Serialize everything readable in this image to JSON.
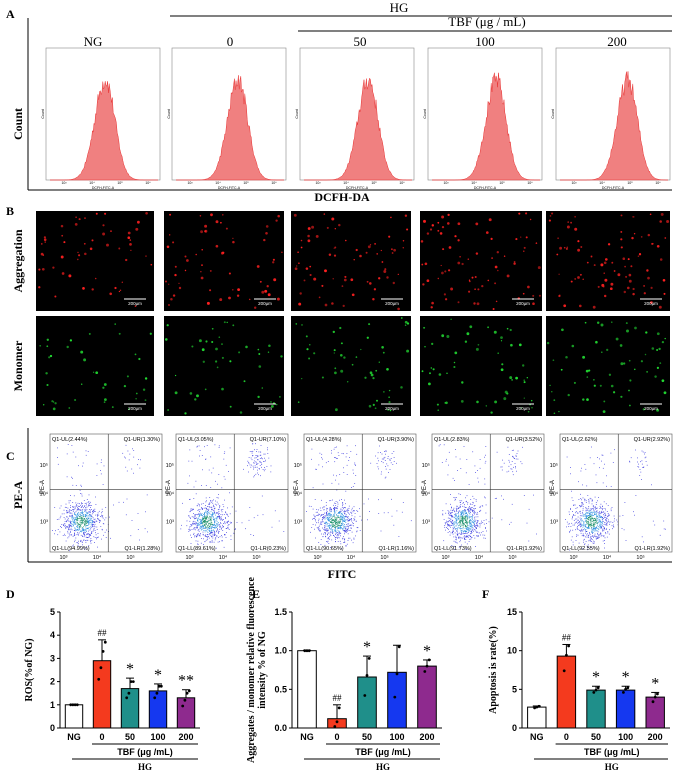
{
  "panel_labels": {
    "a": "A",
    "b": "B",
    "c": "C",
    "d": "D",
    "e": "E",
    "f": "F"
  },
  "header": {
    "hg": "HG",
    "tbf": "TBF (μg / mL)",
    "groups": [
      "NG",
      "0",
      "50",
      "100",
      "200"
    ]
  },
  "panel_a": {
    "ylabel": "Count",
    "xlabel": "DCFH-DA",
    "hist_axis_y": "Count",
    "hist_axis_x": "DCFH-FITC-A",
    "hist_ticks": [
      "10³",
      "10⁴",
      "10⁵",
      "10⁶"
    ],
    "peak_positions": [
      0.52,
      0.58,
      0.6,
      0.6,
      0.63
    ],
    "colors": {
      "fill": "#f08080",
      "stroke": "#e83030"
    }
  },
  "panel_b": {
    "row_labels": [
      "Aggregation",
      "Monomer"
    ],
    "scale_bar": "200μm",
    "dot_colors": {
      "aggregation": "#ff2020",
      "monomer": "#22dd33"
    }
  },
  "panel_c": {
    "ylabel": "PE-A",
    "xlabel": "FITC",
    "y_ticks": [
      "10⁵",
      "10⁴",
      "10³"
    ],
    "x_ticks": [
      "10³",
      "10⁴",
      "10⁵"
    ],
    "quadrants": [
      {
        "ul": "Q1-UL(2.44%)",
        "ur": "Q1-UR(1.30%)",
        "ll": "Q1-LL(94.99%)",
        "lr": "Q1-LR(1.28%)"
      },
      {
        "ul": "Q1-UL(3.05%)",
        "ur": "Q1-UR(7.10%)",
        "ll": "Q1-LL(89.61%)",
        "lr": "Q1-LR(0.23%)"
      },
      {
        "ul": "Q1-UL(4.28%)",
        "ur": "Q1-UR(3.90%)",
        "ll": "Q1-LL(90.65%)",
        "lr": "Q1-LR(1.16%)"
      },
      {
        "ul": "Q1-UL(2.83%)",
        "ur": "Q1-UR(3.52%)",
        "ll": "Q1-LL(91.73%)",
        "lr": "Q1-LR(1.92%)"
      },
      {
        "ul": "Q1-UL(2.62%)",
        "ur": "Q1-UR(2.92%)",
        "ll": "Q1-LL(92.55%)",
        "lr": "Q1-LR(1.92%)"
      }
    ]
  },
  "bar_common": {
    "categories": [
      "NG",
      "0",
      "50",
      "100",
      "200"
    ],
    "colors": [
      "#ffffff",
      "#f43a1e",
      "#1f8f8a",
      "#1538f0",
      "#8e2a8e"
    ],
    "tbf_label": "TBF (μg /mL)",
    "hg_label": "HG"
  },
  "chart_data": [
    {
      "id": "D",
      "type": "bar",
      "ylabel": "ROS(%of NG)",
      "categories": [
        "NG",
        "0",
        "50",
        "100",
        "200"
      ],
      "values": [
        1.0,
        2.9,
        1.7,
        1.6,
        1.3
      ],
      "errors": [
        0.02,
        0.9,
        0.45,
        0.3,
        0.35
      ],
      "points": [
        [
          1,
          1,
          1,
          1
        ],
        [
          2.1,
          2.6,
          3.3,
          3.7
        ],
        [
          1.3,
          1.5,
          2.0,
          2.0
        ],
        [
          1.3,
          1.5,
          1.8,
          1.8
        ],
        [
          0.95,
          1.2,
          1.5,
          1.6
        ]
      ],
      "ylim": [
        0,
        5
      ],
      "yticks": [
        0,
        1,
        2,
        3,
        4,
        5
      ],
      "annotations": [
        "",
        "##",
        "*",
        "*",
        "**"
      ]
    },
    {
      "id": "E",
      "type": "bar",
      "ylabel": "Aggregates / monomer relative fluorescence intensity % of NG",
      "categories": [
        "NG",
        "0",
        "50",
        "100",
        "200"
      ],
      "values": [
        1.0,
        0.12,
        0.66,
        0.72,
        0.8
      ],
      "errors": [
        0.005,
        0.18,
        0.27,
        0.35,
        0.08
      ],
      "points": [
        [
          1,
          1,
          1
        ],
        [
          0.02,
          0.08,
          0.26
        ],
        [
          0.42,
          0.68,
          0.9
        ],
        [
          0.4,
          0.7,
          1.05
        ],
        [
          0.73,
          0.8,
          0.88
        ]
      ],
      "ylim": [
        0,
        1.5
      ],
      "yticks": [
        0.0,
        0.5,
        1.0,
        1.5
      ],
      "annotations": [
        "",
        "##",
        "*",
        "",
        "*"
      ]
    },
    {
      "id": "F",
      "type": "bar",
      "ylabel": "Apoptosis is rate(%)",
      "categories": [
        "NG",
        "0",
        "50",
        "100",
        "200"
      ],
      "values": [
        2.7,
        9.3,
        4.9,
        4.9,
        4.0
      ],
      "errors": [
        0.15,
        1.5,
        0.5,
        0.5,
        0.6
      ],
      "points": [
        [
          2.6,
          2.7,
          2.8
        ],
        [
          7.4,
          9.4,
          10.6
        ],
        [
          4.6,
          4.9,
          5.2
        ],
        [
          4.6,
          5.0,
          5.2
        ],
        [
          3.4,
          4.0,
          4.4
        ]
      ],
      "ylim": [
        0,
        15
      ],
      "yticks": [
        0,
        5,
        10,
        15
      ],
      "annotations": [
        "",
        "##",
        "*",
        "*",
        "*"
      ]
    }
  ]
}
